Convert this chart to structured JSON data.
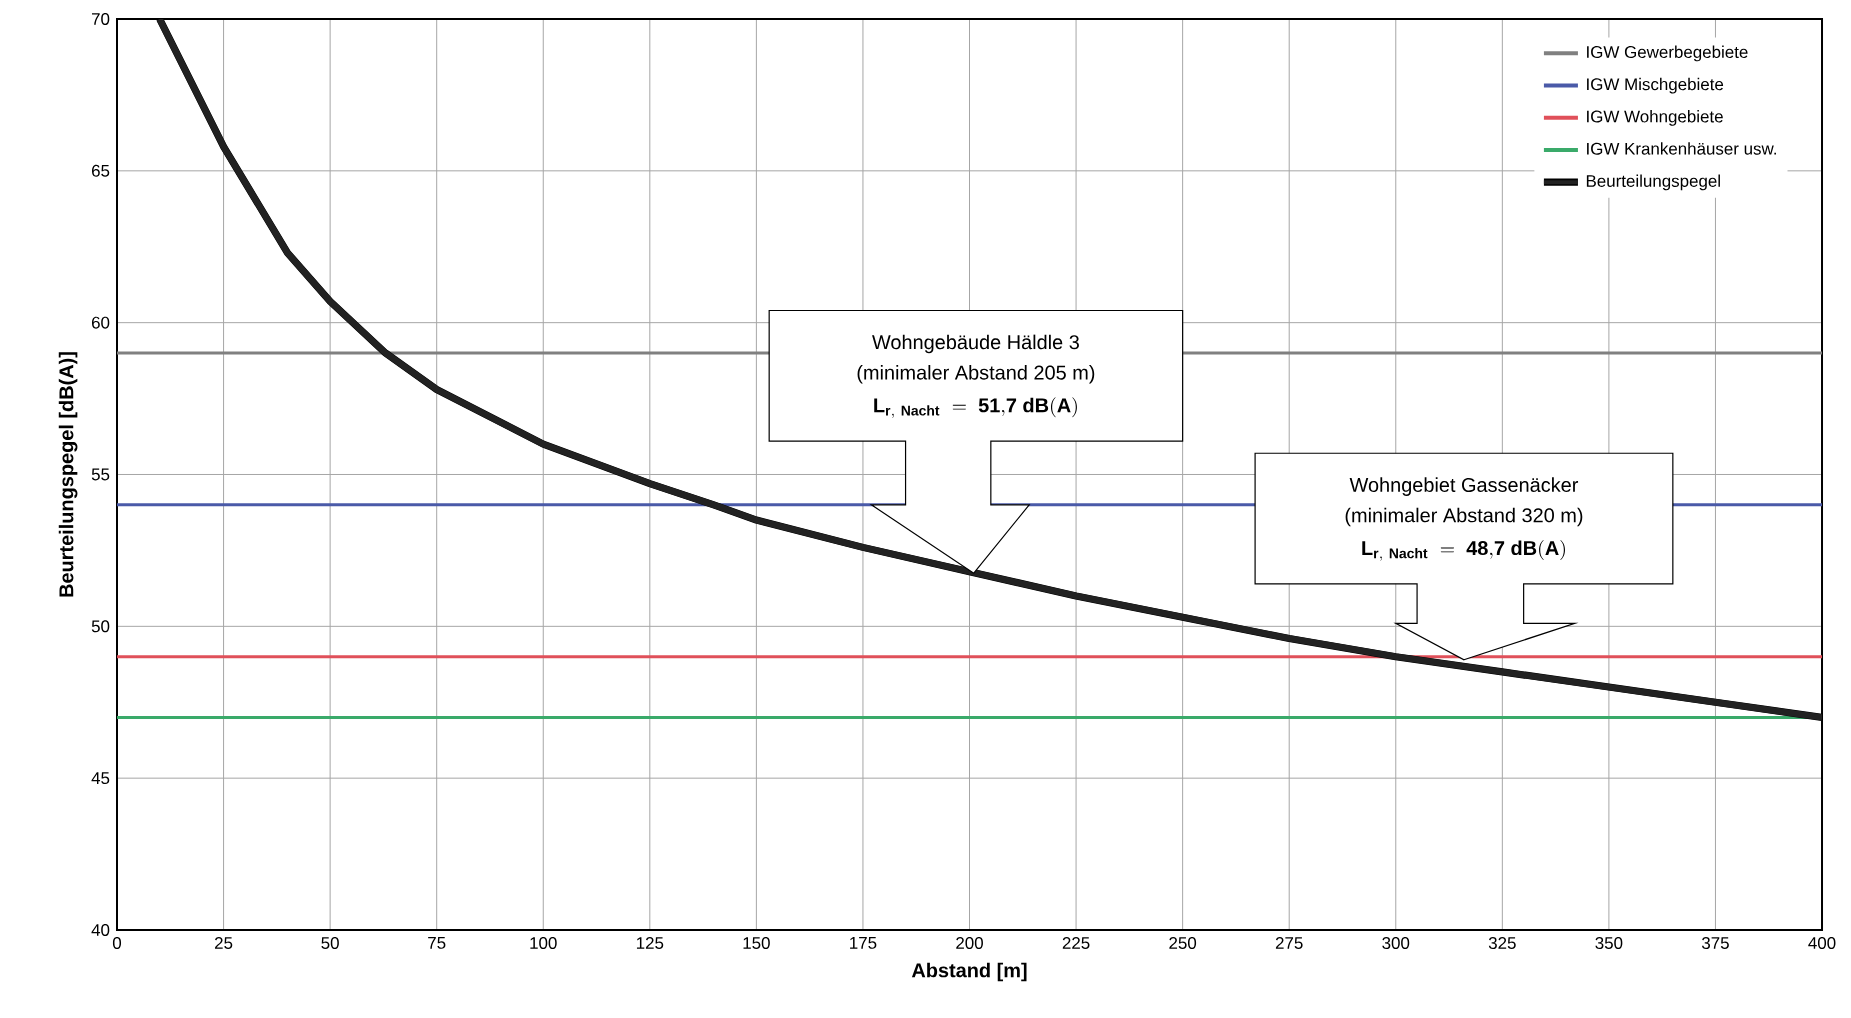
{
  "chart_data": {
    "type": "line",
    "xlabel": "Abstand [m]",
    "ylabel": "Beurteilungspegel [dB(A)]",
    "xlim": [
      0,
      400
    ],
    "ylim": [
      40,
      70
    ],
    "xticks": [
      0,
      25,
      50,
      75,
      100,
      125,
      150,
      175,
      200,
      225,
      250,
      275,
      300,
      325,
      350,
      375,
      400
    ],
    "yticks": [
      40,
      45,
      50,
      55,
      60,
      65,
      70
    ],
    "grid": true,
    "legend": "top right",
    "marker": "none",
    "line_style": "solid",
    "series": [
      {
        "name": "IGW Gewerbegebiete",
        "color": "#808080",
        "x": [
          0,
          400
        ],
        "values": [
          59,
          59
        ]
      },
      {
        "name": "IGW Mischgebiete",
        "color": "#4a5aa8",
        "x": [
          0,
          400
        ],
        "values": [
          54,
          54
        ]
      },
      {
        "name": "IGW Wohngebiete",
        "color": "#e0505a",
        "x": [
          0,
          400
        ],
        "values": [
          49,
          49
        ]
      },
      {
        "name": "IGW Krankenhäuser usw.",
        "color": "#3aaa6a",
        "x": [
          0,
          400
        ],
        "values": [
          47,
          47
        ]
      },
      {
        "name": "Beurteilungspegel",
        "color": "#222222",
        "x": [
          10,
          25,
          40,
          50,
          63,
          75,
          100,
          125,
          140,
          150,
          175,
          200,
          225,
          250,
          275,
          300,
          325,
          350,
          375,
          400
        ],
        "values": [
          70,
          65.8,
          62.3,
          60.7,
          59,
          57.8,
          56,
          54.7,
          54,
          53.5,
          52.6,
          51.8,
          51,
          50.3,
          49.6,
          49,
          48.5,
          48,
          47.5,
          47
        ]
      }
    ],
    "annotations": [
      "Wohngebäude Häldle 3",
      "(minimaler Abstand 205 m)",
      "\\mathbf{L_{r,\\ Nacht}\\ =\\ 51{,}7\\ dB(A)}",
      "Wohngebiet Gassenäcker",
      "(minimaler Abstand 320 m)",
      "\\mathbf{L_{r,\\ Nacht}\\ =\\ 48{,}7\\ dB(A)}"
    ]
  }
}
